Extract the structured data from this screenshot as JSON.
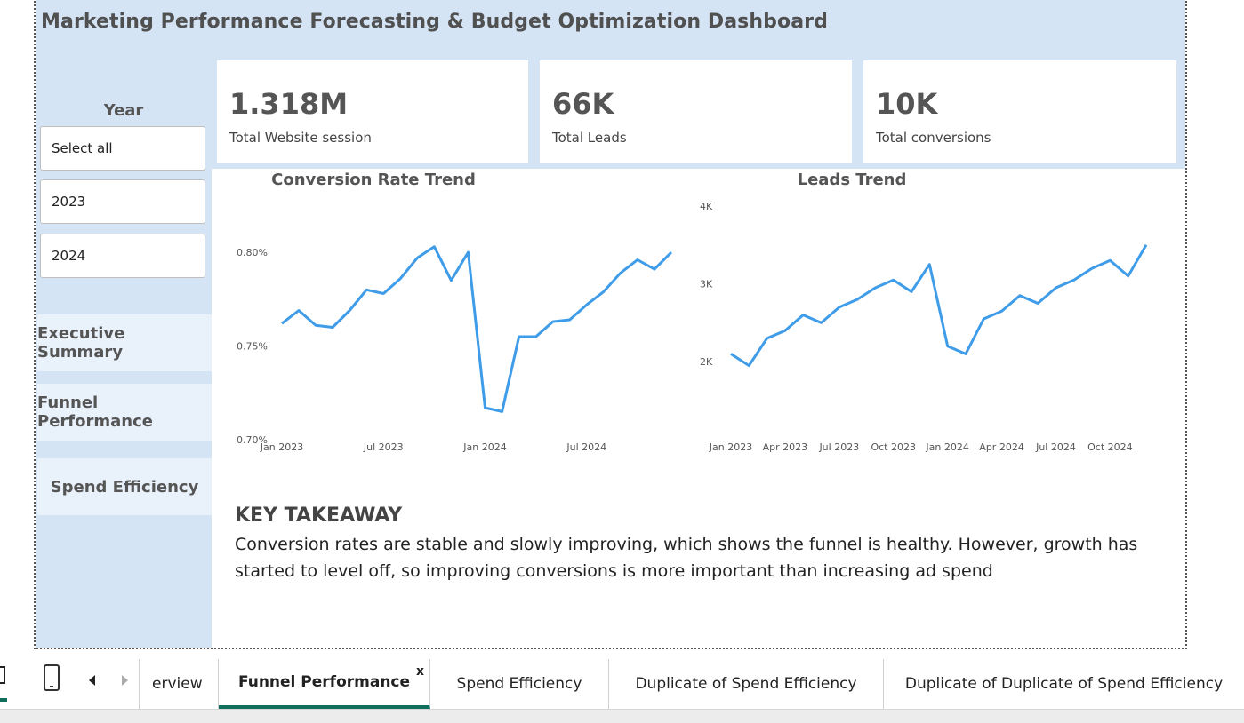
{
  "dashboard": {
    "title": "Marketing Performance Forecasting & Budget Optimization Dashboard"
  },
  "filters": {
    "year_label": "Year",
    "options": [
      "Select all",
      "2023",
      "2024"
    ]
  },
  "navigation": {
    "buttons": [
      "Executive Summary",
      "Funnel Performance",
      "Spend Efficiency"
    ]
  },
  "kpis": [
    {
      "value": "1.318M",
      "label": "Total Website session"
    },
    {
      "value": "66K",
      "label": "Total Leads"
    },
    {
      "value": "10K",
      "label": "Total conversions"
    }
  ],
  "chart_data": [
    {
      "type": "line",
      "title": "Conversion Rate Trend",
      "unit": "%",
      "x": [
        "Jan 2023",
        "Feb 2023",
        "Mar 2023",
        "Apr 2023",
        "May 2023",
        "Jun 2023",
        "Jul 2023",
        "Aug 2023",
        "Sep 2023",
        "Oct 2023",
        "Nov 2023",
        "Dec 2023",
        "Jan 2024",
        "Feb 2024",
        "Mar 2024",
        "Apr 2024",
        "May 2024",
        "Jun 2024",
        "Jul 2024",
        "Aug 2024",
        "Sep 2024",
        "Oct 2024",
        "Nov 2024",
        "Dec 2024"
      ],
      "values": [
        0.762,
        0.769,
        0.761,
        0.76,
        0.769,
        0.78,
        0.778,
        0.786,
        0.797,
        0.803,
        0.785,
        0.8,
        0.717,
        0.715,
        0.755,
        0.755,
        0.763,
        0.764,
        0.772,
        0.779,
        0.789,
        0.796,
        0.791,
        0.8
      ],
      "y_ticks": [
        "0.70%",
        "0.75%",
        "0.80%"
      ],
      "x_ticks": [
        "Jan 2023",
        "Jul 2023",
        "Jan 2024",
        "Jul 2024"
      ],
      "ylim": [
        0.7,
        0.81
      ],
      "color": "#3f9ce8"
    },
    {
      "type": "line",
      "title": "Leads Trend",
      "x": [
        "Jan 2023",
        "Feb 2023",
        "Mar 2023",
        "Apr 2023",
        "May 2023",
        "Jun 2023",
        "Jul 2023",
        "Aug 2023",
        "Sep 2023",
        "Oct 2023",
        "Nov 2023",
        "Dec 2023",
        "Jan 2024",
        "Feb 2024",
        "Mar 2024",
        "Apr 2024",
        "May 2024",
        "Jun 2024",
        "Jul 2024",
        "Aug 2024",
        "Sep 2024",
        "Oct 2024",
        "Nov 2024",
        "Dec 2024"
      ],
      "values": [
        2100,
        1950,
        2300,
        2400,
        2600,
        2500,
        2700,
        2800,
        2950,
        3050,
        2900,
        3250,
        2200,
        2100,
        2550,
        2650,
        2850,
        2750,
        2950,
        3050,
        3200,
        3300,
        3100,
        3500
      ],
      "y_ticks": [
        "2K",
        "3K",
        "4K"
      ],
      "x_ticks": [
        "Jan 2023",
        "Apr 2023",
        "Jul 2023",
        "Oct 2023",
        "Jan 2024",
        "Apr 2024",
        "Jul 2024",
        "Oct 2024"
      ],
      "ylim": [
        1500,
        4000
      ],
      "color": "#3f9ce8"
    }
  ],
  "takeaway": {
    "title": "KEY TAKEAWAY",
    "body": "Conversion rates are stable and slowly improving, which shows the funnel is healthy. However, growth has started to level off, so improving conversions is more important than increasing ad spend"
  },
  "page_tabs": {
    "items": [
      "erview",
      "Funnel Performance",
      "Spend Efficiency",
      "Duplicate of Spend Efficiency",
      "Duplicate of Duplicate of Spend Efficiency"
    ],
    "active": "Funnel Performance",
    "close_glyph": "x"
  },
  "icons": {
    "mobile": "mobile-layout-icon",
    "prev": "chevron-left-icon",
    "next": "chevron-right-icon",
    "desktop": "desktop-layout-icon"
  }
}
